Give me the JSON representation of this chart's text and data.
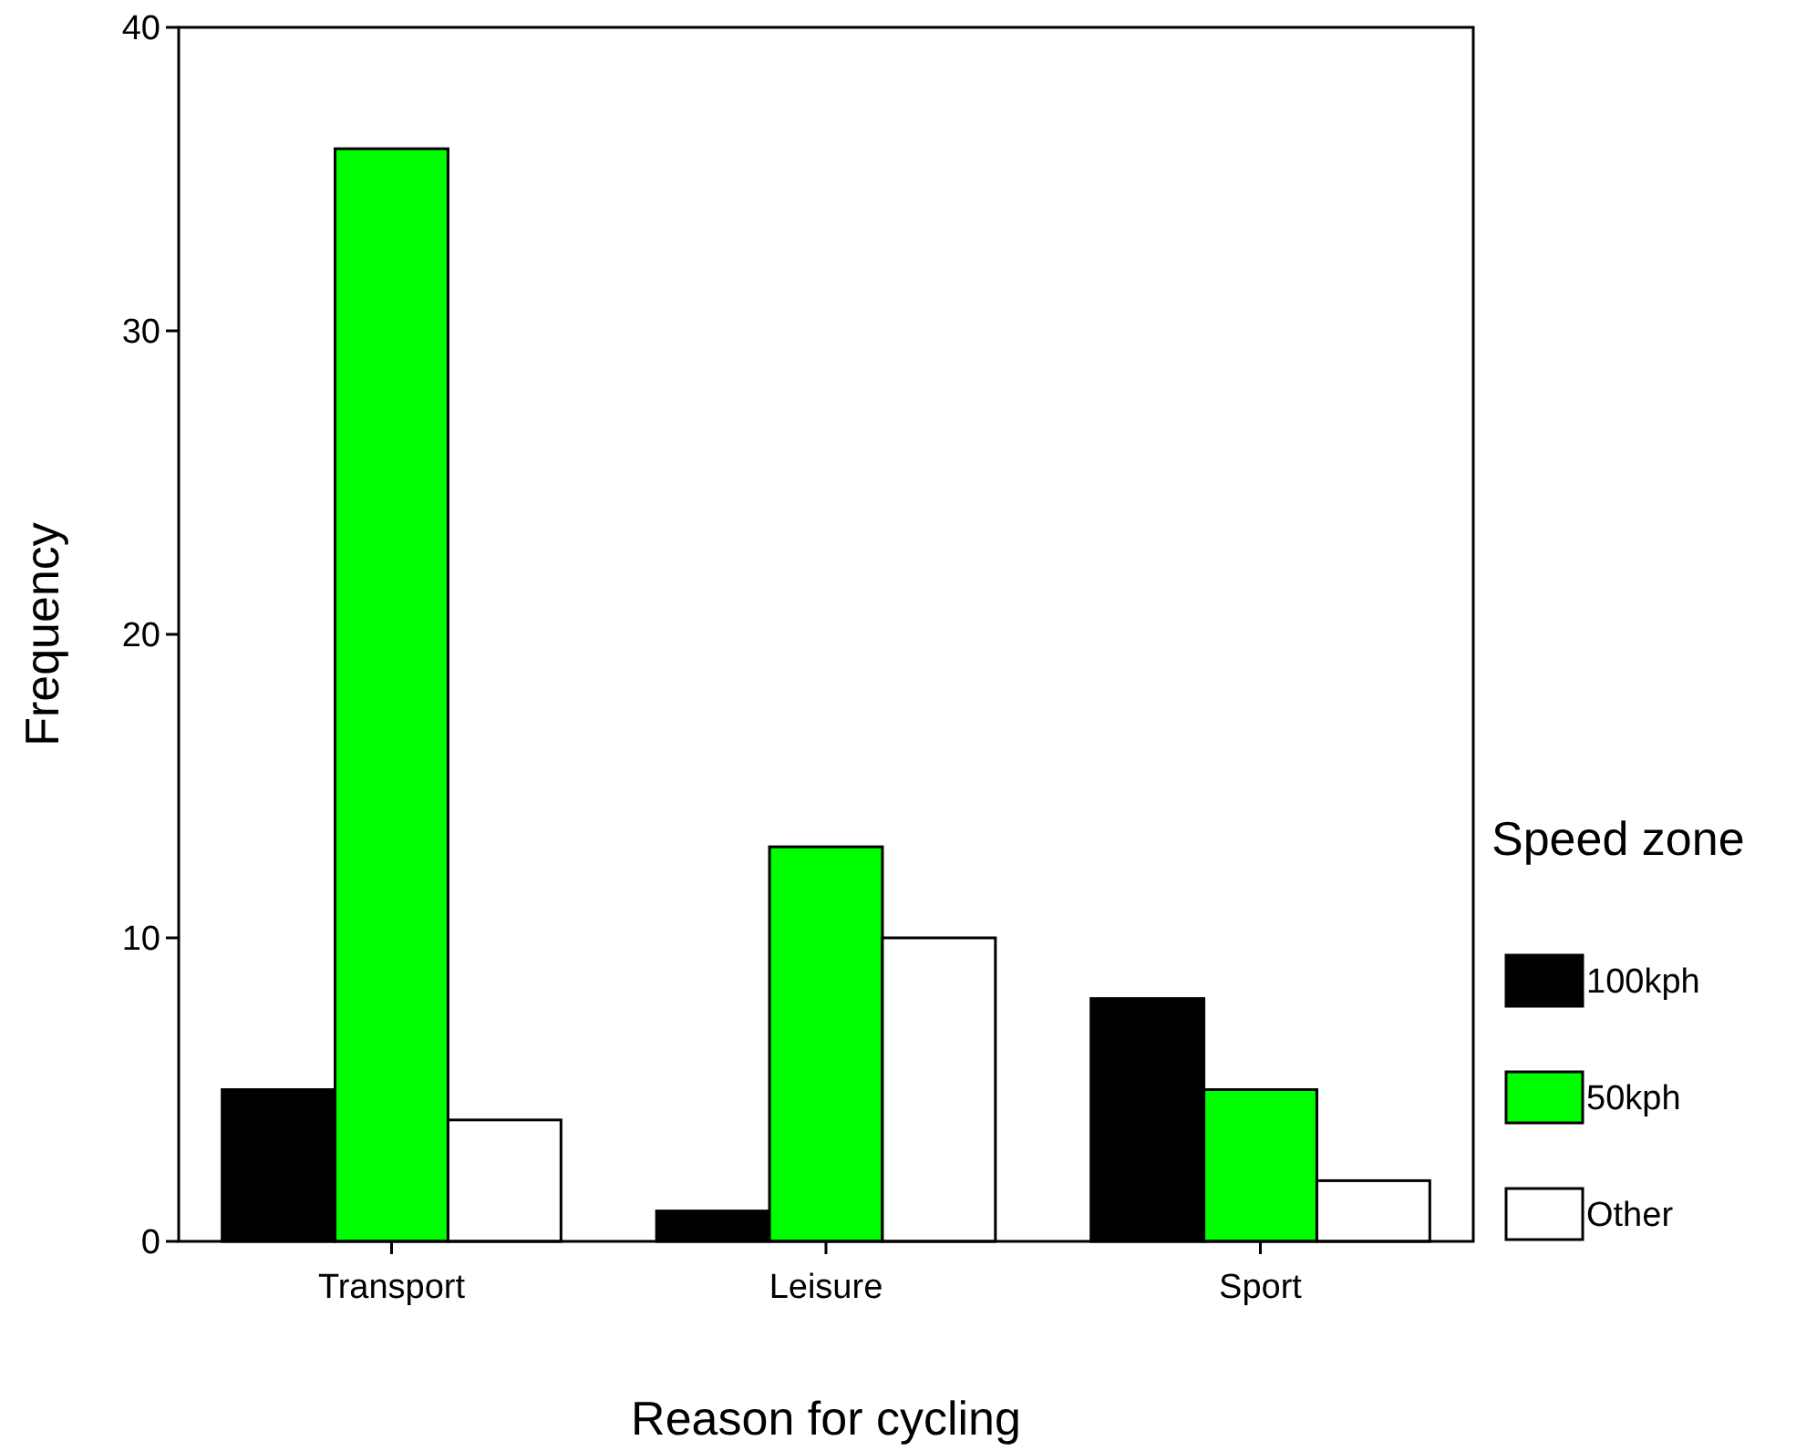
{
  "chart_data": {
    "type": "bar",
    "xlabel": "Reason for cycling",
    "ylabel": "Frequency",
    "legend_title": "Speed zone",
    "categories": [
      "Transport",
      "Leisure",
      "Sport"
    ],
    "series": [
      {
        "name": "100kph",
        "color": "#000000",
        "values": [
          5,
          1,
          8
        ]
      },
      {
        "name": "50kph",
        "color": "#00ff00",
        "values": [
          36,
          13,
          5
        ]
      },
      {
        "name": "Other",
        "color": "#ffffff",
        "values": [
          4,
          10,
          2
        ]
      }
    ],
    "ylim": [
      0,
      40
    ],
    "yticks": [
      0,
      10,
      20,
      30,
      40
    ],
    "grid": false,
    "legend": "right"
  }
}
